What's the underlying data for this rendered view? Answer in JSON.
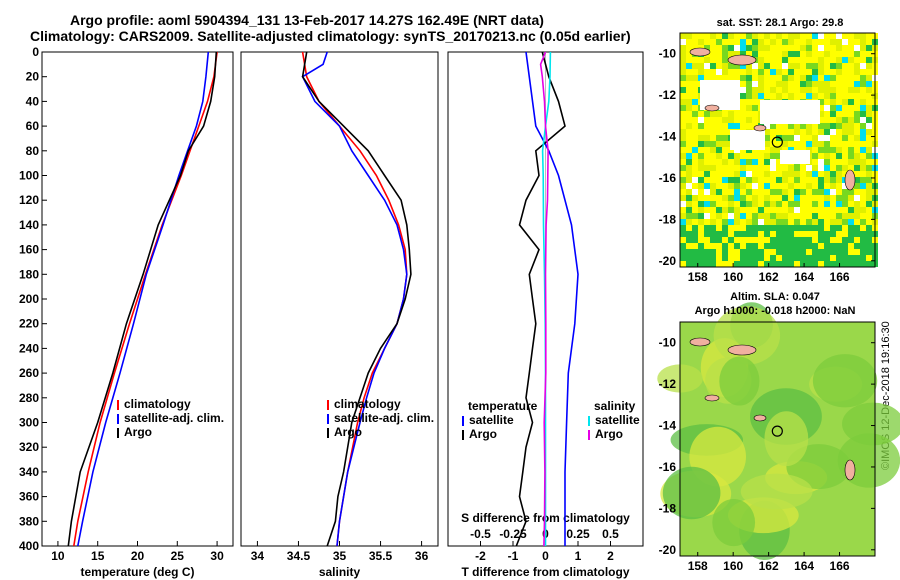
{
  "header": {
    "line1": "Argo profile: aoml 5904394_131 13-Feb-2017 14.27S 162.49E (NRT data)",
    "line2": "Climatology: CARS2009. Satellite-adjusted climatology: synTS_20170213.nc (0.05d earlier)"
  },
  "credit": "©IMOS 12-Dec-2018 19:16:30",
  "colors": {
    "red": "#ff0000",
    "blue": "#0000ff",
    "black": "#000000",
    "cyan": "#00e5ee",
    "magenta": "#e600e6"
  },
  "chart_data": [
    {
      "type": "line",
      "panel": "temperature",
      "xlabel": "temperature (deg C)",
      "ylabel": "depth",
      "xlim": [
        8,
        32
      ],
      "ylim": [
        0,
        400
      ],
      "xticks": [
        10,
        15,
        20,
        25,
        30
      ],
      "yticks": [
        0,
        20,
        40,
        60,
        80,
        100,
        120,
        140,
        160,
        180,
        200,
        220,
        240,
        260,
        280,
        300,
        320,
        340,
        360,
        380,
        400
      ],
      "legend": [
        "climatology",
        "satellite-adj. clim.",
        "Argo"
      ],
      "legend_pos": "lower-right",
      "series": [
        {
          "name": "climatology",
          "color": "red",
          "depth": [
            0,
            20,
            40,
            60,
            80,
            100,
            140,
            180,
            220,
            260,
            300,
            340,
            380,
            400
          ],
          "values": [
            30,
            29.6,
            28.8,
            27.7,
            26.6,
            25.5,
            23.1,
            21.0,
            19.0,
            17.1,
            15.3,
            13.8,
            12.5,
            12.0
          ]
        },
        {
          "name": "satellite-adj. clim.",
          "color": "blue",
          "depth": [
            0,
            20,
            40,
            60,
            80,
            100,
            140,
            180,
            220,
            260,
            300,
            340,
            380,
            400
          ],
          "values": [
            28.9,
            28.6,
            28.2,
            27.4,
            26.3,
            25.2,
            23.2,
            21.1,
            19.5,
            17.8,
            16.0,
            14.4,
            13.1,
            12.5
          ]
        },
        {
          "name": "Argo",
          "color": "black",
          "depth": [
            0,
            20,
            40,
            60,
            80,
            100,
            140,
            180,
            220,
            260,
            300,
            340,
            380,
            400
          ],
          "values": [
            29.9,
            29.7,
            29.2,
            28.3,
            26.4,
            25.4,
            22.6,
            20.7,
            18.6,
            16.9,
            15.0,
            12.8,
            11.7,
            11.3
          ]
        }
      ]
    },
    {
      "type": "line",
      "panel": "salinity",
      "xlabel": "salinity",
      "ylabel": "depth",
      "xlim": [
        33.8,
        36.2
      ],
      "ylim": [
        0,
        400
      ],
      "xticks": [
        34,
        34.5,
        35,
        35.5,
        36
      ],
      "yticks": [],
      "legend": [
        "climatology",
        "satellite-adj. clim.",
        "Argo"
      ],
      "legend_pos": "lower-right",
      "series": [
        {
          "name": "climatology",
          "color": "red",
          "depth": [
            0,
            20,
            40,
            60,
            80,
            100,
            120,
            140,
            160,
            180,
            200,
            220,
            240,
            260,
            280,
            300,
            340,
            380,
            400
          ],
          "values": [
            34.55,
            34.6,
            34.75,
            35.0,
            35.25,
            35.45,
            35.6,
            35.72,
            35.8,
            35.82,
            35.78,
            35.7,
            35.55,
            35.4,
            35.3,
            35.22,
            35.1,
            35.0,
            34.97
          ]
        },
        {
          "name": "satellite-adj. clim.",
          "color": "blue",
          "depth": [
            0,
            10,
            20,
            40,
            60,
            80,
            100,
            120,
            140,
            160,
            180,
            200,
            220,
            240,
            260,
            280,
            300,
            340,
            380,
            400
          ],
          "values": [
            34.85,
            34.8,
            34.55,
            34.7,
            35.0,
            35.15,
            35.35,
            35.55,
            35.7,
            35.78,
            35.82,
            35.78,
            35.7,
            35.55,
            35.42,
            35.33,
            35.25,
            35.1,
            35.0,
            34.97
          ]
        },
        {
          "name": "Argo",
          "color": "black",
          "depth": [
            0,
            20,
            40,
            60,
            80,
            100,
            120,
            140,
            160,
            180,
            200,
            220,
            240,
            260,
            280,
            300,
            320,
            340,
            360,
            380,
            400
          ],
          "values": [
            34.6,
            34.55,
            34.75,
            35.05,
            35.35,
            35.55,
            35.75,
            35.82,
            35.85,
            35.87,
            35.8,
            35.7,
            35.5,
            35.35,
            35.25,
            35.15,
            35.1,
            35.05,
            34.98,
            34.95,
            34.85
          ]
        }
      ]
    },
    {
      "type": "line",
      "panel": "difference",
      "xlabel": "T difference from climatology",
      "xlabel_top": "S difference from climatology",
      "xlim": [
        -3,
        3
      ],
      "ylim": [
        0,
        400
      ],
      "xticks": [
        -2,
        -1,
        0,
        1,
        2
      ],
      "s_xticks_label": [
        "-0.5",
        "-0.25",
        "0",
        "0.25",
        "0.5"
      ],
      "legend_t_title": "temperature",
      "legend_s_title": "salinity",
      "legend_t": [
        "satellite",
        "Argo"
      ],
      "legend_s": [
        "satellite",
        "Argo"
      ],
      "series": [
        {
          "name": "T satellite",
          "color": "blue",
          "depth": [
            0,
            30,
            60,
            80,
            100,
            140,
            180,
            220,
            260,
            300,
            340,
            380,
            400
          ],
          "values": [
            -0.6,
            -0.45,
            -0.3,
            0.1,
            0.4,
            0.8,
            1.0,
            0.9,
            0.7,
            0.65,
            0.6,
            0.6,
            0.6
          ]
        },
        {
          "name": "T Argo",
          "color": "black",
          "depth": [
            0,
            20,
            40,
            60,
            80,
            100,
            120,
            140,
            160,
            180,
            200,
            220,
            240,
            260,
            280,
            300,
            320,
            340,
            360,
            380,
            400
          ],
          "values": [
            -0.1,
            0.1,
            0.4,
            0.6,
            -0.3,
            -0.2,
            -0.6,
            -0.8,
            -0.2,
            -0.5,
            -0.4,
            -0.3,
            -0.4,
            -0.5,
            -0.6,
            -0.4,
            -0.6,
            -0.7,
            -0.8,
            -0.6,
            -0.9
          ]
        },
        {
          "name": "S satellite",
          "color": "cyan",
          "depth": [
            0,
            20,
            40,
            60,
            80,
            100,
            140,
            180,
            220,
            260,
            300,
            340,
            380,
            400
          ],
          "values": [
            0.15,
            0.14,
            0.1,
            0.0,
            -0.09,
            -0.07,
            -0.06,
            -0.03,
            -0.01,
            0.0,
            0.0,
            0.0,
            0.0,
            0.0
          ]
        },
        {
          "name": "S Argo",
          "color": "magenta",
          "depth": [
            0,
            10,
            20,
            40,
            60,
            80,
            100,
            120,
            140,
            180,
            220,
            260,
            300,
            340,
            380,
            400
          ],
          "values": [
            0.0,
            -0.15,
            -0.1,
            -0.03,
            0.0,
            0.08,
            0.07,
            0.06,
            0.02,
            0.0,
            0.01,
            0.01,
            -0.04,
            -0.02,
            -0.03,
            -0.05
          ]
        }
      ]
    },
    {
      "type": "heatmap",
      "panel": "sst-map",
      "title": "sat. SST: 28.1  Argo: 29.8",
      "xlim": [
        157,
        168
      ],
      "ylim": [
        -20.3,
        -9
      ],
      "xticks": [
        158,
        160,
        162,
        164,
        166
      ],
      "yticks": [
        -10,
        -12,
        -14,
        -16,
        -18,
        -20
      ],
      "argo_position": {
        "lon": 162.49,
        "lat": -14.27
      }
    },
    {
      "type": "heatmap",
      "panel": "sla-map",
      "title": "Altim. SLA: 0.047",
      "subtitle": "Argo h1000: -0.018  h2000: NaN",
      "xlim": [
        157,
        168
      ],
      "ylim": [
        -20.3,
        -9
      ],
      "xticks": [
        158,
        160,
        162,
        164,
        166
      ],
      "yticks": [
        -10,
        -12,
        -14,
        -16,
        -18,
        -20
      ],
      "argo_position": {
        "lon": 162.49,
        "lat": -14.27
      }
    }
  ]
}
